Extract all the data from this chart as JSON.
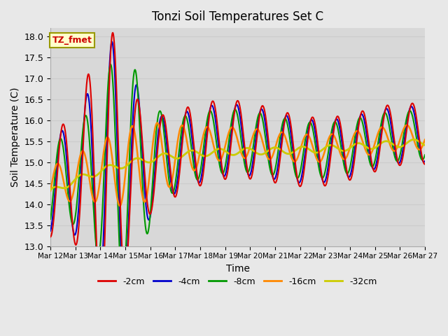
{
  "title": "Tonzi Soil Temperatures Set C",
  "xlabel": "Time",
  "ylabel": "Soil Temperature (C)",
  "ylim": [
    13.0,
    18.2
  ],
  "background_color": "#e8e8e8",
  "plot_bg_color": "#d8d8d8",
  "annotation_text": "TZ_fmet",
  "annotation_bg": "#ffffcc",
  "annotation_edge": "#999900",
  "annotation_color": "#cc0000",
  "series_colors": {
    "-2cm": "#dd0000",
    "-4cm": "#0000cc",
    "-8cm": "#009900",
    "-16cm": "#ff8800",
    "-32cm": "#cccc00"
  },
  "series_linewidths": {
    "-2cm": 1.5,
    "-4cm": 1.5,
    "-8cm": 1.5,
    "-16cm": 1.8,
    "-32cm": 2.0
  },
  "tick_labels": [
    "Mar 12",
    "Mar 13",
    "Mar 14",
    "Mar 15",
    "Mar 16",
    "Mar 17",
    "Mar 18",
    "Mar 19",
    "Mar 20",
    "Mar 21",
    "Mar 22",
    "Mar 23",
    "Mar 24",
    "Mar 25",
    "Mar 26",
    "Mar 27"
  ],
  "yticks": [
    13.0,
    13.5,
    14.0,
    14.5,
    15.0,
    15.5,
    16.0,
    16.5,
    17.0,
    17.5,
    18.0
  ],
  "grid_color": "#cccccc",
  "legend_entries": [
    "-2cm",
    "-4cm",
    "-8cm",
    "-16cm",
    "-32cm"
  ]
}
